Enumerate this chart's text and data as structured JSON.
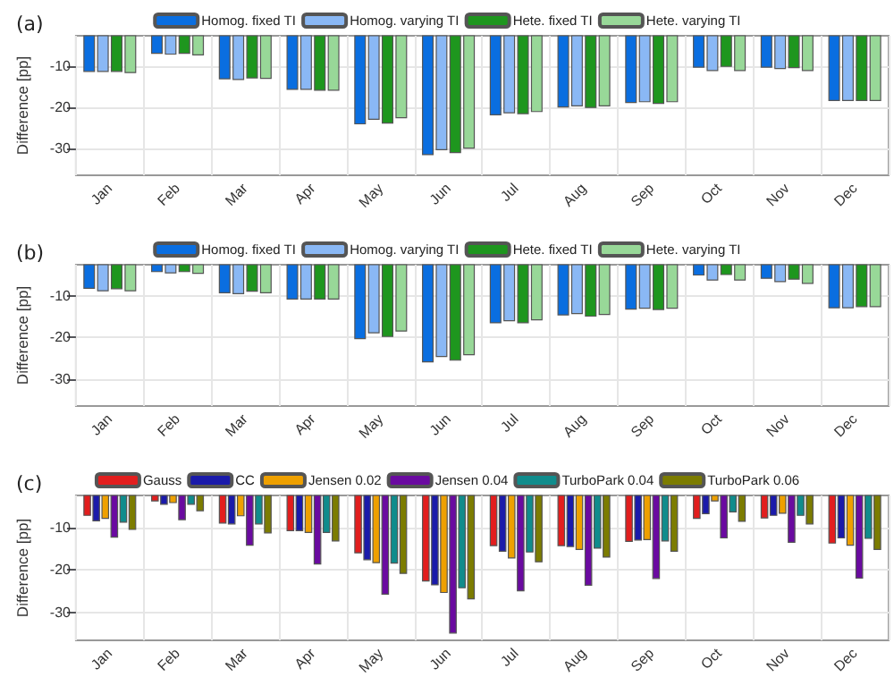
{
  "chart_data": [
    {
      "type": "bar",
      "title": "(a)",
      "ylabel": "Difference [pp]",
      "categories": [
        "Jan",
        "Feb",
        "Mar",
        "Apr",
        "May",
        "Jun",
        "Jul",
        "Aug",
        "Sep",
        "Oct",
        "Nov",
        "Dec"
      ],
      "ylim": [
        -36.5,
        -2.5
      ],
      "yticks": [
        -30,
        -20,
        -10
      ],
      "grid": true,
      "legend": "top",
      "series": [
        {
          "name": "Homog. fixed TI",
          "color": "#0a6ee0",
          "values": [
            -11.3,
            -6.9,
            -13.1,
            -15.7,
            -24.1,
            -31.6,
            -21.9,
            -20,
            -18.9,
            -10.3,
            -10.3,
            -18.4
          ]
        },
        {
          "name": "Homog. varying TI",
          "color": "#8ab8f5",
          "values": [
            -11.3,
            -7.1,
            -13.3,
            -15.7,
            -23,
            -30.4,
            -21.4,
            -19.7,
            -18.7,
            -11.1,
            -10.6,
            -18.4
          ]
        },
        {
          "name": "Hete. fixed TI",
          "color": "#1e961e",
          "values": [
            -11.3,
            -6.9,
            -12.9,
            -15.9,
            -23.9,
            -31.1,
            -21.6,
            -20.1,
            -19.1,
            -10.1,
            -10.4,
            -18.4
          ]
        },
        {
          "name": "Hete. varying TI",
          "color": "#98d898",
          "values": [
            -11.6,
            -7.3,
            -13,
            -15.9,
            -22.6,
            -30,
            -21.1,
            -19.7,
            -18.7,
            -11.1,
            -11.1,
            -18.4
          ]
        }
      ]
    },
    {
      "type": "bar",
      "title": "(b)",
      "ylabel": "Difference [pp]",
      "categories": [
        "Jan",
        "Feb",
        "Mar",
        "Apr",
        "May",
        "Jun",
        "Jul",
        "Aug",
        "Sep",
        "Oct",
        "Nov",
        "Dec"
      ],
      "ylim": [
        -36.5,
        -2.5
      ],
      "yticks": [
        -30,
        -20,
        -10
      ],
      "grid": true,
      "legend": "top",
      "series": [
        {
          "name": "Homog. fixed TI",
          "color": "#0a6ee0",
          "values": [
            -8.3,
            -4.3,
            -9.4,
            -10.9,
            -20.4,
            -26,
            -16.6,
            -14.7,
            -13.3,
            -5.1,
            -5.9,
            -13
          ]
        },
        {
          "name": "Homog. varying TI",
          "color": "#8ab8f5",
          "values": [
            -8.9,
            -4.6,
            -9.6,
            -10.9,
            -19,
            -24.7,
            -16.1,
            -14.4,
            -13.1,
            -6.3,
            -6.7,
            -13
          ]
        },
        {
          "name": "Hete. fixed TI",
          "color": "#1e961e",
          "values": [
            -8.4,
            -4.3,
            -9,
            -10.9,
            -19.9,
            -25.6,
            -16.6,
            -15,
            -13.4,
            -5,
            -6.1,
            -12.7
          ]
        },
        {
          "name": "Hete. varying TI",
          "color": "#98d898",
          "values": [
            -8.9,
            -4.7,
            -9.4,
            -10.9,
            -18.6,
            -24.3,
            -15.9,
            -14.6,
            -13.1,
            -6.3,
            -7.1,
            -12.7
          ]
        }
      ]
    },
    {
      "type": "bar",
      "title": "(c)",
      "ylabel": "Difference [pp]",
      "categories": [
        "Jan",
        "Feb",
        "Mar",
        "Apr",
        "May",
        "Jun",
        "Jul",
        "Aug",
        "Sep",
        "Oct",
        "Nov",
        "Dec"
      ],
      "ylim": [
        -36.5,
        -2.5
      ],
      "yticks": [
        -30,
        -20,
        -10
      ],
      "grid": true,
      "legend": "top",
      "series": [
        {
          "name": "Gauss",
          "color": "#e21e1e",
          "values": [
            -7.3,
            -3.9,
            -9.1,
            -10.9,
            -16.1,
            -22.7,
            -14.4,
            -14.4,
            -13.4,
            -8,
            -7.9,
            -13.8
          ]
        },
        {
          "name": "CC",
          "color": "#1a1aaa",
          "values": [
            -8.6,
            -4.7,
            -9.3,
            -10.9,
            -17.7,
            -23.6,
            -15.7,
            -14.6,
            -13.1,
            -6.9,
            -7.3,
            -12.6
          ]
        },
        {
          "name": "Jensen 0.02",
          "color": "#eea000",
          "values": [
            -8,
            -4.3,
            -7.4,
            -11.3,
            -18.4,
            -25.4,
            -17.3,
            -15.3,
            -13,
            -3.9,
            -6.8,
            -14.3
          ]
        },
        {
          "name": "Jensen 0.04",
          "color": "#6a0aa0",
          "values": [
            -12.4,
            -8.3,
            -14.3,
            -18.7,
            -25.8,
            -34.9,
            -25,
            -23.7,
            -22.1,
            -12.6,
            -13.6,
            -22
          ]
        },
        {
          "name": "TurboPark 0.04",
          "color": "#108c8c",
          "values": [
            -8.9,
            -4.7,
            -9.3,
            -11.3,
            -18.5,
            -24.3,
            -15.9,
            -15,
            -13.3,
            -6.5,
            -7.3,
            -12.7
          ]
        },
        {
          "name": "TurboPark 0.06",
          "color": "#7c7c00",
          "values": [
            -10.6,
            -6.2,
            -11.4,
            -13.3,
            -20.9,
            -26.9,
            -18.2,
            -17.1,
            -15.7,
            -8.7,
            -9.3,
            -15.3
          ]
        }
      ]
    }
  ]
}
